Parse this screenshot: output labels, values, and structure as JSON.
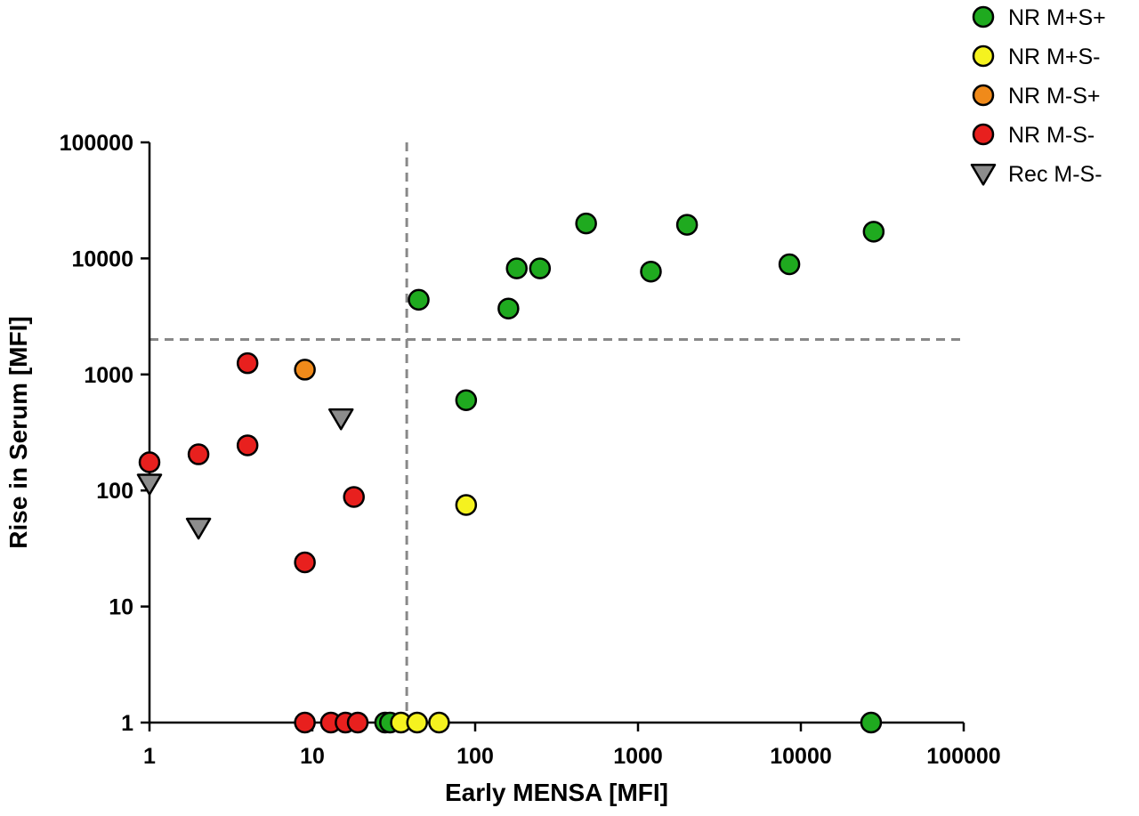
{
  "chart_data": {
    "type": "scatter",
    "xlabel": "Early MENSA [MFI]",
    "ylabel": "Rise in Serum [MFI]",
    "x_scale": "log",
    "y_scale": "log",
    "xlim": [
      1,
      100000
    ],
    "ylim": [
      1,
      100000
    ],
    "x_ticks": [
      1,
      10,
      100,
      1000,
      10000,
      100000
    ],
    "y_ticks": [
      1,
      10,
      100,
      1000,
      10000,
      100000
    ],
    "x_tick_labels": [
      "1",
      "10",
      "100",
      "1000",
      "10000",
      "100000"
    ],
    "y_tick_labels": [
      "1",
      "10",
      "100",
      "1000",
      "10000",
      "100000"
    ],
    "grid": false,
    "legend_position": "top-right",
    "threshold_lines": {
      "x": 38,
      "y": 2000
    },
    "series": [
      {
        "name": "NR M+S+",
        "marker": "circle",
        "color": "#1faa1f",
        "points": [
          [
            45,
            4400
          ],
          [
            88,
            600
          ],
          [
            160,
            3700
          ],
          [
            180,
            8200
          ],
          [
            250,
            8200
          ],
          [
            480,
            20000
          ],
          [
            1200,
            7700
          ],
          [
            2000,
            19500
          ],
          [
            8500,
            8900
          ],
          [
            28000,
            17000
          ],
          [
            28,
            1
          ],
          [
            30,
            1
          ],
          [
            27000,
            1
          ]
        ]
      },
      {
        "name": "NR M+S-",
        "marker": "circle",
        "color": "#f5f21f",
        "points": [
          [
            88,
            75
          ],
          [
            35,
            1
          ],
          [
            44,
            1
          ],
          [
            60,
            1
          ]
        ]
      },
      {
        "name": "NR M-S+",
        "marker": "circle",
        "color": "#f08a1a",
        "points": [
          [
            9,
            1100
          ]
        ]
      },
      {
        "name": "NR M-S-",
        "marker": "circle",
        "color": "#e8201e",
        "points": [
          [
            1,
            175
          ],
          [
            2,
            205
          ],
          [
            4,
            1250
          ],
          [
            4,
            245
          ],
          [
            18,
            88
          ],
          [
            9,
            24
          ],
          [
            9,
            1
          ],
          [
            13,
            1
          ],
          [
            16,
            1
          ],
          [
            19,
            1
          ]
        ]
      },
      {
        "name": "Rec M-S-",
        "marker": "triangle-down",
        "color": "#8c8c8c",
        "points": [
          [
            1,
            115
          ],
          [
            2,
            48
          ],
          [
            15,
            420
          ]
        ]
      }
    ]
  }
}
